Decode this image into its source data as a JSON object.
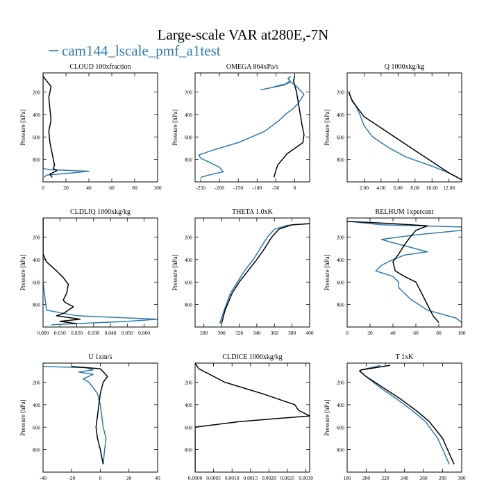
{
  "figure": {
    "title": "Large-scale VAR at280E,-7N",
    "legend_label": "cam144_lscale_pmf_a1test",
    "colors": {
      "case": "#2b7bb0",
      "obs": "#000000"
    }
  },
  "chart_data": [
    {
      "type": "line",
      "title": "CLOUD  100xfraction",
      "ylabel": "Pressure [hPa]",
      "xlabel": "",
      "xlim": [
        0,
        100
      ],
      "xticks": [
        "0",
        "20",
        "40",
        "60",
        "80",
        "100"
      ],
      "ylim": [
        1000,
        30
      ],
      "yticks": [
        "200",
        "400",
        "600",
        "800"
      ],
      "series": [
        {
          "color": "#2b7bb0",
          "x": [
            0,
            0,
            0,
            0,
            0,
            0,
            0,
            0,
            0,
            0,
            0,
            0,
            5,
            40,
            25,
            3,
            1
          ],
          "y": [
            30,
            100,
            200,
            300,
            400,
            500,
            600,
            700,
            800,
            850,
            870,
            880,
            890,
            905,
            920,
            940,
            960
          ]
        },
        {
          "color": "#000000",
          "x": [
            0,
            3,
            7,
            5,
            6,
            7,
            5,
            6,
            8,
            10,
            9,
            12,
            6,
            8
          ],
          "y": [
            60,
            100,
            150,
            250,
            350,
            450,
            550,
            650,
            750,
            850,
            880,
            900,
            930,
            960
          ]
        }
      ]
    },
    {
      "type": "line",
      "title": "OMEGA  864xPa/s",
      "ylabel": "Pressure [hPa]",
      "xlabel": "",
      "xlim": [
        -265,
        40
      ],
      "xticks": [
        "-250",
        "-200",
        "-150",
        "-100",
        "-50",
        "0"
      ],
      "ylim": [
        1000,
        30
      ],
      "yticks": [
        "200",
        "400",
        "600",
        "800"
      ],
      "series": [
        {
          "color": "#2b7bb0",
          "x": [
            -10,
            -18,
            -12,
            -25,
            -40,
            -60,
            -90,
            -30,
            -10,
            5,
            25,
            10,
            -5,
            -25,
            -40,
            -80,
            -150,
            -220,
            -255,
            -250,
            -230,
            -200,
            -190,
            -230,
            -250
          ],
          "y": [
            60,
            80,
            100,
            130,
            140,
            160,
            180,
            140,
            110,
            150,
            220,
            300,
            350,
            400,
            450,
            550,
            650,
            720,
            760,
            790,
            820,
            870,
            910,
            940,
            960
          ]
        },
        {
          "color": "#000000",
          "x": [
            0,
            -3,
            5,
            10,
            15,
            20,
            25,
            22,
            -20,
            -45,
            -50,
            -55
          ],
          "y": [
            60,
            100,
            200,
            300,
            400,
            500,
            580,
            650,
            750,
            850,
            900,
            960
          ]
        }
      ]
    },
    {
      "type": "line",
      "title": "Q  1000xkg/kg",
      "ylabel": "Pressure [hPa]",
      "xlabel": "",
      "xlim": [
        0,
        13.5
      ],
      "xticks": [
        "2.00",
        "4.00",
        "6.00",
        "8.00",
        "10.00",
        "12.00"
      ],
      "ylim": [
        1000,
        30
      ],
      "yticks": [
        "200",
        "400",
        "600",
        "800"
      ],
      "series": [
        {
          "color": "#2b7bb0",
          "x": [
            0.2,
            0.5,
            1,
            1.5,
            2,
            3,
            5,
            7,
            10,
            12,
            13.5
          ],
          "y": [
            200,
            260,
            320,
            400,
            500,
            600,
            700,
            780,
            860,
            920,
            980
          ]
        },
        {
          "color": "#000000",
          "x": [
            0.2,
            0.6,
            1.2,
            2,
            4,
            6,
            8,
            10,
            12,
            13.5
          ],
          "y": [
            200,
            280,
            340,
            420,
            520,
            620,
            720,
            820,
            920,
            980
          ]
        }
      ]
    },
    {
      "type": "line",
      "title": "CLDLIQ  1000xkg/kg",
      "ylabel": "Pressure [hPa]",
      "xlabel": "",
      "xlim": [
        0,
        0.068
      ],
      "xticks": [
        "0.000",
        "0.010",
        "0.020",
        "0.030",
        "0.040",
        "0.050",
        "0.060"
      ],
      "ylim": [
        1000,
        30
      ],
      "yticks": [
        "200",
        "400",
        "600",
        "800"
      ],
      "series": [
        {
          "color": "#2b7bb0",
          "x": [
            0,
            0,
            0,
            0.002,
            0.02,
            0.068,
            0.05,
            0.005
          ],
          "y": [
            30,
            300,
            600,
            850,
            900,
            930,
            950,
            980
          ]
        },
        {
          "color": "#000000",
          "x": [
            0,
            0,
            0.002,
            0.008,
            0.012,
            0.015,
            0.014,
            0.012,
            0.013,
            0.018,
            0.012,
            0.008,
            0.022,
            0.01,
            0.02
          ],
          "y": [
            30,
            350,
            420,
            500,
            560,
            620,
            700,
            760,
            780,
            820,
            880,
            900,
            930,
            950,
            970
          ]
        }
      ]
    },
    {
      "type": "line",
      "title": "THETA  1.0xK",
      "ylabel": "Pressure [hPa]",
      "xlabel": "",
      "xlim": [
        270,
        400
      ],
      "xticks": [
        "280",
        "300",
        "320",
        "340",
        "360",
        "380",
        "400"
      ],
      "ylim": [
        1000,
        30
      ],
      "yticks": [
        "200",
        "400",
        "600",
        "800"
      ],
      "series": [
        {
          "color": "#2b7bb0",
          "x": [
            400,
            375,
            360,
            352,
            344,
            336,
            326,
            318,
            310,
            303,
            298
          ],
          "y": [
            80,
            95,
            130,
            200,
            300,
            400,
            500,
            600,
            700,
            850,
            970
          ]
        },
        {
          "color": "#000000",
          "x": [
            400,
            380,
            365,
            357,
            349,
            340,
            330,
            320,
            312,
            304,
            300
          ],
          "y": [
            80,
            90,
            130,
            200,
            300,
            400,
            500,
            600,
            700,
            850,
            970
          ]
        }
      ]
    },
    {
      "type": "line",
      "title": "RELHUM  1xpercent",
      "ylabel": "Pressure [hPa]",
      "xlabel": "",
      "xlim": [
        0,
        100
      ],
      "xticks": [
        "0",
        "20",
        "40",
        "60",
        "80",
        "100"
      ],
      "ylim": [
        1000,
        30
      ],
      "yticks": [
        "200",
        "400",
        "600",
        "800"
      ],
      "series": [
        {
          "color": "#2b7bb0",
          "x": [
            2,
            30,
            100,
            100,
            60,
            30,
            40,
            70,
            50,
            40,
            30,
            25,
            40,
            45,
            45,
            50,
            55,
            70,
            95,
            100
          ],
          "y": [
            60,
            90,
            110,
            140,
            180,
            220,
            250,
            330,
            360,
            400,
            450,
            500,
            550,
            600,
            650,
            700,
            750,
            850,
            920,
            960
          ]
        },
        {
          "color": "#000000",
          "x": [
            0,
            40,
            70,
            60,
            55,
            50,
            45,
            40,
            42,
            50,
            60,
            65,
            70,
            75,
            80
          ],
          "y": [
            60,
            80,
            100,
            140,
            200,
            270,
            350,
            420,
            500,
            550,
            600,
            700,
            800,
            900,
            960
          ]
        }
      ]
    },
    {
      "type": "line",
      "title": "U  1xm/s",
      "ylabel": "Pressure [hPa]",
      "xlabel": "",
      "xlim": [
        -40,
        40
      ],
      "xticks": [
        "-40",
        "-20",
        "0",
        "20",
        "40"
      ],
      "ylim": [
        1000,
        30
      ],
      "yticks": [
        "200",
        "400",
        "600",
        "800"
      ],
      "series": [
        {
          "color": "#2b7bb0",
          "x": [
            -40,
            -10,
            -5,
            -15,
            -5,
            -12,
            -8,
            -2,
            -1,
            0,
            1,
            2,
            4,
            3,
            2
          ],
          "y": [
            60,
            70,
            90,
            110,
            130,
            170,
            200,
            300,
            350,
            400,
            500,
            600,
            700,
            800,
            930
          ]
        },
        {
          "color": "#000000",
          "x": [
            -20,
            0,
            3,
            5,
            2,
            0,
            -1,
            -2,
            -3,
            -2,
            0,
            2
          ],
          "y": [
            60,
            80,
            120,
            150,
            200,
            300,
            400,
            500,
            600,
            700,
            800,
            930
          ]
        }
      ]
    },
    {
      "type": "line",
      "title": "CLDICE  1000xkg/kg",
      "ylabel": "",
      "xlabel": "",
      "xlim": [
        0,
        0.0031
      ],
      "xticks": [
        "0.0000",
        "0.0005",
        "0.0010",
        "0.0015",
        "0.0020",
        "0.0025",
        "0.0030"
      ],
      "ylim": [
        1000,
        30
      ],
      "yticks": [
        "200",
        "400",
        "600",
        "800"
      ],
      "series": [
        {
          "color": "#000000",
          "x": [
            0,
            0.0001,
            0.0008,
            0.0018,
            0.0027,
            0.0028,
            0.0031,
            0.0012,
            0,
            0
          ],
          "y": [
            30,
            80,
            200,
            300,
            400,
            450,
            500,
            550,
            600,
            1000
          ]
        }
      ]
    },
    {
      "type": "line",
      "title": "T  1xK",
      "ylabel": "Pressure [hPa]",
      "xlabel": "",
      "xlim": [
        180,
        300
      ],
      "xticks": [
        "180",
        "200",
        "220",
        "240",
        "260",
        "280",
        "300"
      ],
      "ylim": [
        1000,
        30
      ],
      "yticks": [
        "200",
        "400",
        "600",
        "800"
      ],
      "series": [
        {
          "color": "#2b7bb0",
          "x": [
            215,
            205,
            195,
            193,
            200,
            215,
            232,
            248,
            262,
            275,
            287
          ],
          "y": [
            50,
            70,
            90,
            100,
            150,
            250,
            350,
            450,
            550,
            700,
            930
          ]
        },
        {
          "color": "#000000",
          "x": [
            225,
            210,
            195,
            193,
            200,
            218,
            236,
            252,
            266,
            280,
            292
          ],
          "y": [
            50,
            70,
            90,
            100,
            150,
            250,
            350,
            450,
            550,
            700,
            930
          ]
        }
      ]
    }
  ]
}
